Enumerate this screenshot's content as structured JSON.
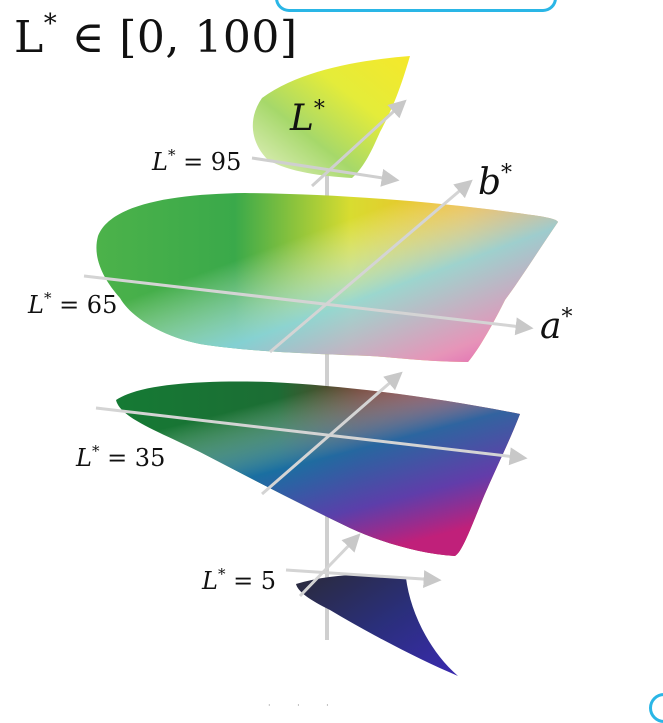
{
  "title": {
    "prefix": "L",
    "sup": "*",
    "rest": " ∈ [0, 100]"
  },
  "axes": {
    "lightness": {
      "name": "L",
      "sup": "*"
    },
    "a": {
      "name": "a",
      "sup": "*"
    },
    "b": {
      "name": "b",
      "sup": "*"
    }
  },
  "slices": [
    {
      "prefix": "L",
      "sup": "*",
      "value": " = 95"
    },
    {
      "prefix": "L",
      "sup": "*",
      "value": " = 65"
    },
    {
      "prefix": "L",
      "sup": "*",
      "value": " = 35"
    },
    {
      "prefix": "L",
      "sup": "*",
      "value": " = 5"
    }
  ],
  "colors": {
    "accent": "#2ab6e6",
    "axis": "#c8c8c8"
  },
  "footer": {
    "crumb": "· · ·"
  }
}
